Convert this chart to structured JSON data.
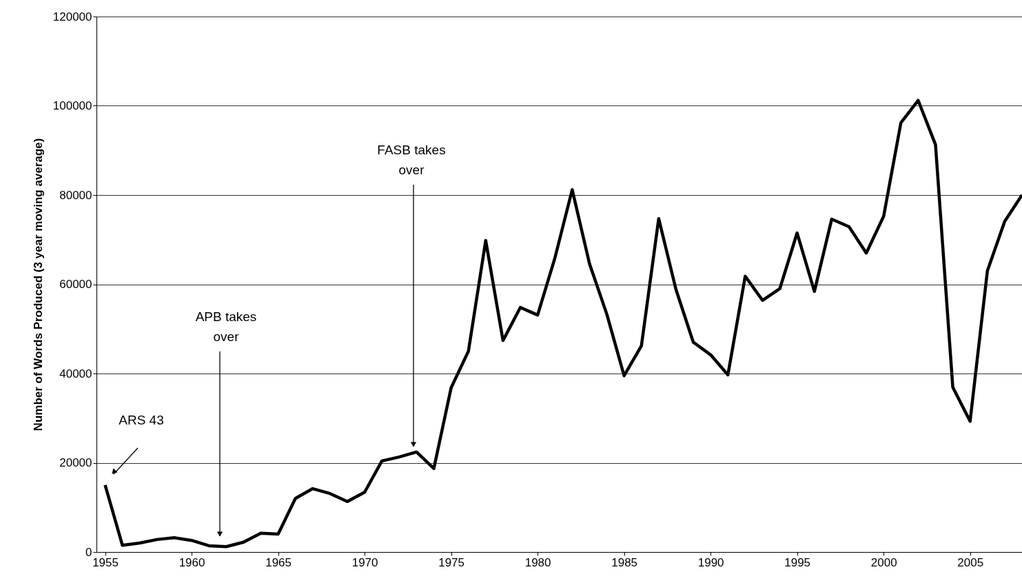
{
  "chart_data": {
    "type": "line",
    "ylabel": "Number of Words Produced (3  year moving average)",
    "x": [
      1955,
      1956,
      1957,
      1958,
      1959,
      1960,
      1961,
      1962,
      1963,
      1964,
      1965,
      1966,
      1967,
      1968,
      1969,
      1970,
      1971,
      1972,
      1973,
      1974,
      1975,
      1976,
      1977,
      1978,
      1979,
      1980,
      1981,
      1982,
      1983,
      1984,
      1985,
      1986,
      1987,
      1988,
      1989,
      1990,
      1991,
      1992,
      1993,
      1994,
      1995,
      1996,
      1997,
      1998,
      1999,
      2000,
      2001,
      2002,
      2003,
      2004,
      2005,
      2006,
      2007,
      2008
    ],
    "series": [
      {
        "color": "#000000",
        "values": [
          15000,
          1500,
          2000,
          2800,
          3200,
          2600,
          1400,
          1200,
          2200,
          4200,
          4000,
          12000,
          14200,
          13100,
          11300,
          13400,
          20400,
          21300,
          22400,
          18700,
          36800,
          45000,
          69800,
          47400,
          54800,
          53100,
          65900,
          81200,
          64600,
          53300,
          39500,
          46200,
          74700,
          58800,
          47000,
          44200,
          39700,
          61800,
          56400,
          59000,
          71500,
          58400,
          74600,
          72900,
          67000,
          75200,
          96200,
          101200,
          91300,
          36900,
          29300,
          63000,
          74100,
          80000
        ]
      }
    ],
    "xlim": [
      1954.5,
      2008
    ],
    "xticks": [
      1955,
      1960,
      1965,
      1970,
      1975,
      1980,
      1985,
      1990,
      1995,
      2000,
      2005
    ],
    "ylim": [
      0,
      120000
    ],
    "yticks": [
      0,
      20000,
      40000,
      60000,
      80000,
      100000,
      120000
    ],
    "grid": "y",
    "marker": "none",
    "line_style": "solid",
    "annotations": [
      "ARS 43",
      "APB takes\nover",
      "FASB takes\nover"
    ]
  }
}
